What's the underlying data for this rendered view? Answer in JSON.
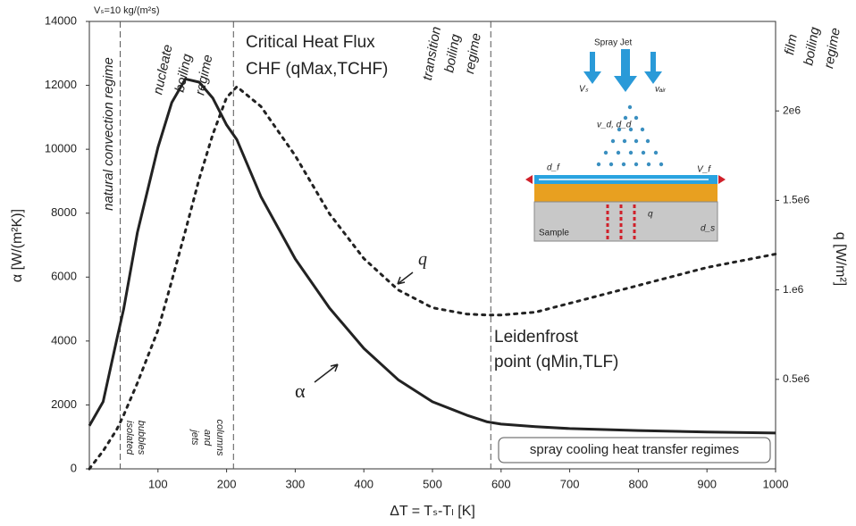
{
  "chart_data": {
    "type": "line",
    "x_label": "ΔT = Tₛ-Tₗ [K]",
    "y_label": "α [W/(m²K)]",
    "y2_label": "q [W/m²]",
    "xlim": [
      0,
      1000
    ],
    "xticks": [
      100,
      200,
      300,
      400,
      500,
      600,
      700,
      800,
      900,
      1000
    ],
    "ylim": [
      0,
      14000
    ],
    "yticks": [
      0,
      2000,
      4000,
      6000,
      8000,
      10000,
      12000,
      14000
    ],
    "y2lim": [
      0,
      2500000
    ],
    "y2ticks": [
      {
        "value": 500000,
        "label": "0.5e6"
      },
      {
        "value": 1000000,
        "label": "1.e6"
      },
      {
        "value": 1500000,
        "label": "1.5e6"
      },
      {
        "value": 2000000,
        "label": "2e6"
      }
    ],
    "x": [
      0,
      20,
      40,
      50,
      70,
      100,
      120,
      140,
      160,
      180,
      200,
      215,
      250,
      300,
      350,
      400,
      450,
      500,
      550,
      580,
      600,
      650,
      700,
      800,
      900,
      1000
    ],
    "series": [
      {
        "name": "α",
        "color": "#222222",
        "style": "solid",
        "values": [
          1350,
          2100,
          4050,
          5000,
          7400,
          10060,
          11460,
          12200,
          12100,
          11600,
          10760,
          10300,
          8520,
          6570,
          5030,
          3770,
          2790,
          2100,
          1680,
          1470,
          1400,
          1320,
          1260,
          1200,
          1150,
          1120
        ]
      },
      {
        "name": "q",
        "color": "#222222",
        "style": "dotted",
        "axis": "y2",
        "values": [
          0,
          100000,
          220000,
          300000,
          480000,
          775000,
          1050000,
          1330000,
          1620000,
          1870000,
          2075000,
          2135000,
          2025000,
          1750000,
          1425000,
          1175000,
          1000000,
          900000,
          865000,
          860000,
          860000,
          875000,
          925000,
          1025000,
          1125000,
          1200000
        ]
      }
    ],
    "regime_boundaries": [
      45,
      210,
      585
    ],
    "annotations": [
      "Vₛ=10 kg/(m²s)",
      "natural convection regime",
      "nucleate",
      "boiling",
      "regime",
      "isolated",
      "bubbles",
      "jets",
      "and",
      "columns",
      "Critical Heat Flux",
      "CHF (qMax,TCHF)",
      "transition",
      "boiling",
      "regime",
      "film",
      "boiling",
      "regime",
      "Leidenfrost",
      "point (qMin,TLF)",
      "spray cooling heat transfer regimes"
    ]
  },
  "inset": {
    "title": "Spray Jet",
    "sample": "Sample",
    "labels": [
      "Vₛ",
      "vₐᵢᵣ",
      "v_d, d_d",
      "d_f",
      "V_f",
      "d_s",
      "q"
    ]
  }
}
